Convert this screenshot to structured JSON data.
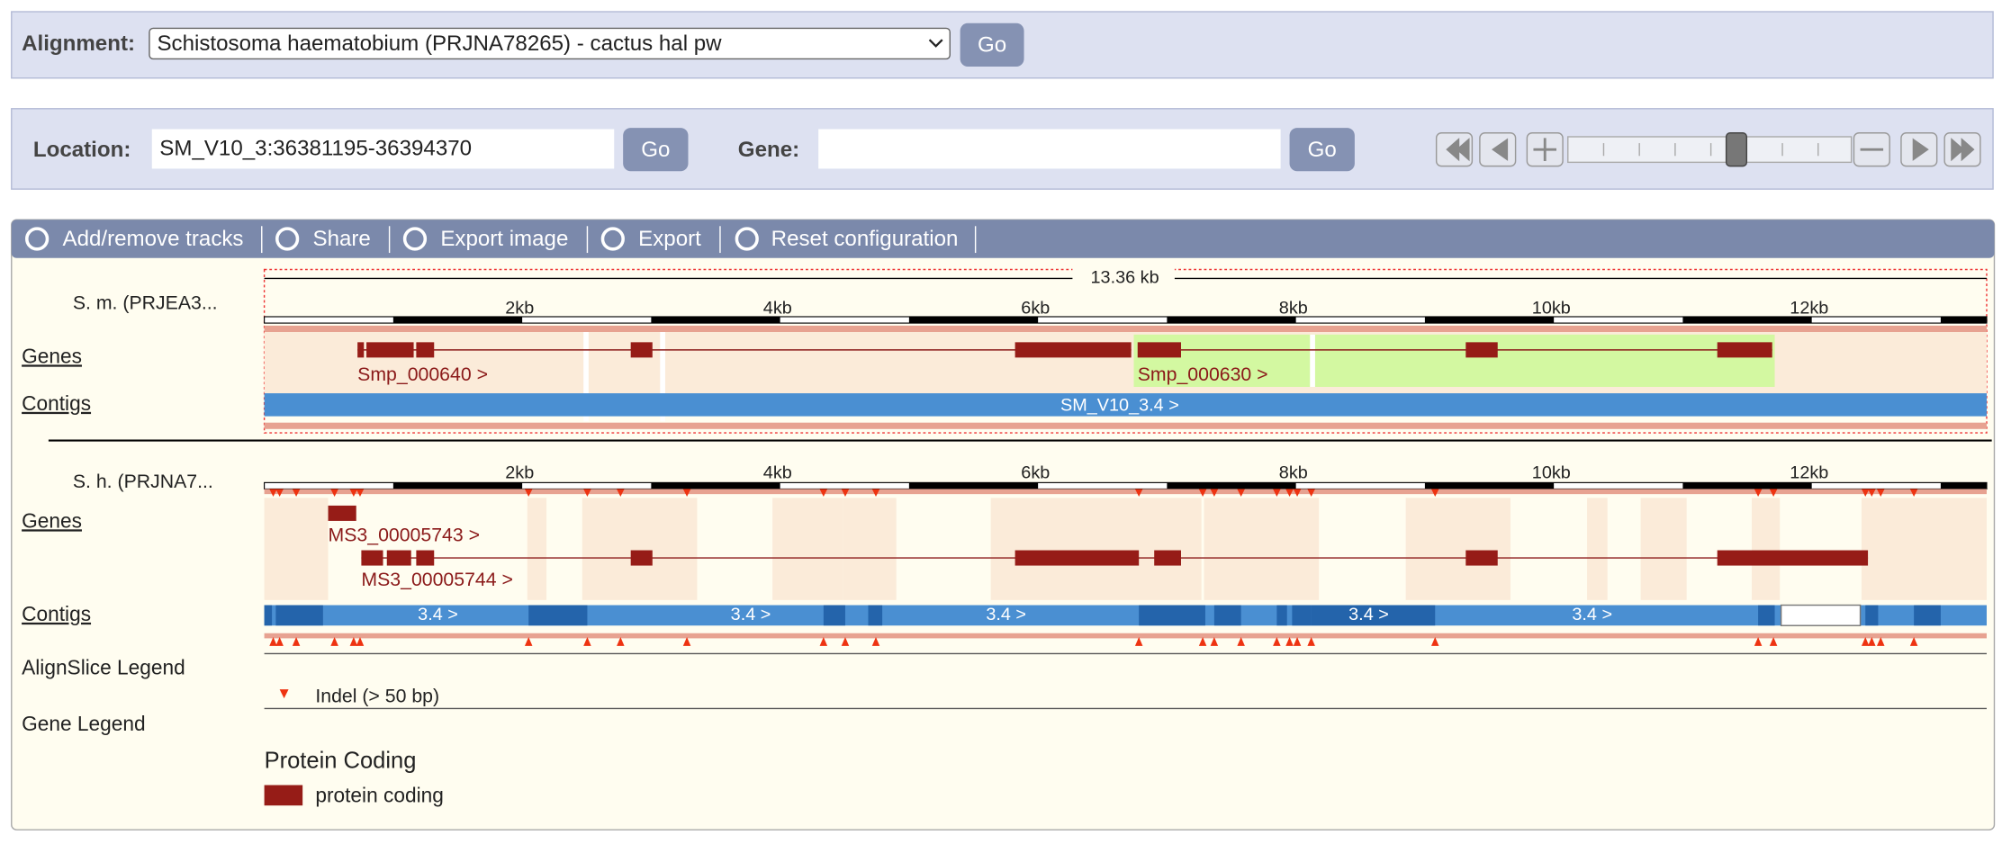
{
  "alignment": {
    "label": "Alignment:",
    "selected": "Schistosoma haematobium (PRJNA78265) - cactus hal pw",
    "go": "Go"
  },
  "location": {
    "label": "Location:",
    "value": "SM_V10_3:36381195-36394370",
    "go": "Go",
    "gene_label": "Gene:",
    "gene_go": "Go"
  },
  "toolbar": [
    "Add/remove tracks",
    "Share",
    "Export image",
    "Export",
    "Reset configuration"
  ],
  "panel1": {
    "length": "13.36 kb",
    "species": "S. m. (PRJEA3...",
    "ruler": [
      "2kb",
      "4kb",
      "6kb",
      "8kb",
      "10kb",
      "12kb"
    ],
    "tracks": [
      "Genes",
      "Contigs"
    ],
    "genes": [
      "Smp_000640 >",
      "Smp_000630 >"
    ],
    "contig": "SM_V10_3.4 >"
  },
  "panel2": {
    "species": "S. h. (PRJNA7...",
    "ruler": [
      "2kb",
      "4kb",
      "6kb",
      "8kb",
      "10kb",
      "12kb"
    ],
    "tracks": [
      "Genes",
      "Contigs"
    ],
    "genes": [
      "MS3_00005743 >",
      "MS3_00005744 >"
    ],
    "contigs": [
      "3.4 >",
      "3.4 >",
      "3.4 >",
      "3.4 >",
      "3.4 >"
    ]
  },
  "legend": {
    "alignslice_title": "AlignSlice Legend",
    "indel": "Indel (> 50 bp)",
    "gene_title": "Gene Legend",
    "group": "Protein Coding",
    "protein_coding": "protein coding"
  }
}
